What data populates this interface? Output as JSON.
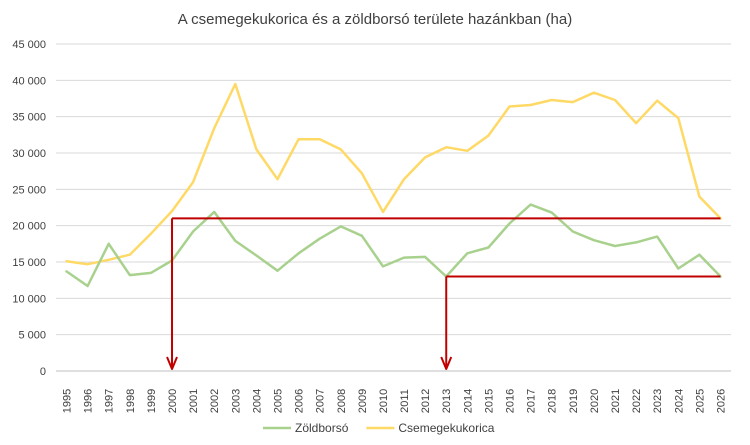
{
  "chart_data": {
    "type": "line",
    "title": "A csemegekukorica és a zöldborsó területe hazánkban (ha)",
    "xlabel": "",
    "ylabel": "",
    "ylim": [
      0,
      45000
    ],
    "ytick_labels": [
      "0",
      "5 000",
      "10 000",
      "15 000",
      "20 000",
      "25 000",
      "30 000",
      "35 000",
      "40 000",
      "45 000"
    ],
    "yticks": [
      0,
      5000,
      10000,
      15000,
      20000,
      25000,
      30000,
      35000,
      40000,
      45000
    ],
    "grid": true,
    "legend_position": "bottom",
    "x": [
      "1995",
      "1996",
      "1997",
      "1998",
      "1999",
      "2000",
      "2001",
      "2002",
      "2003",
      "2004",
      "2005",
      "2006",
      "2007",
      "2008",
      "2009",
      "2010",
      "2011",
      "2012",
      "2013",
      "2014",
      "2015",
      "2016",
      "2017",
      "2018",
      "2019",
      "2020",
      "2021",
      "2022",
      "2023",
      "2024",
      "2025",
      "2026"
    ],
    "series": [
      {
        "name": "Zöldborsó",
        "color": "#a9d18e",
        "values": [
          13700,
          11700,
          17500,
          13200,
          13500,
          15200,
          19200,
          21900,
          17900,
          15900,
          13800,
          16200,
          18200,
          19900,
          18600,
          14400,
          15600,
          15700,
          13000,
          16200,
          17000,
          20300,
          22900,
          21800,
          19200,
          18000,
          17200,
          17700,
          18500,
          14100,
          16000,
          13000
        ]
      },
      {
        "name": "Csemegekukorica",
        "color": "#ffd966",
        "values": [
          15100,
          14700,
          15300,
          16000,
          18900,
          22000,
          26000,
          33400,
          39500,
          30500,
          26400,
          31900,
          31900,
          30500,
          27200,
          21900,
          26400,
          29400,
          30800,
          30300,
          32400,
          36400,
          36600,
          37300,
          37000,
          38300,
          37300,
          34100,
          37200,
          34800,
          24000,
          21000
        ]
      }
    ],
    "annotations": [
      {
        "kind": "reference-line",
        "color": "#c00000",
        "from_x": "2000",
        "to_x": "2026",
        "y": 21000,
        "arrow_to_axis": true
      },
      {
        "kind": "reference-line",
        "color": "#c00000",
        "from_x": "2013",
        "to_x": "2026",
        "y": 13000,
        "arrow_to_axis": true
      }
    ]
  }
}
